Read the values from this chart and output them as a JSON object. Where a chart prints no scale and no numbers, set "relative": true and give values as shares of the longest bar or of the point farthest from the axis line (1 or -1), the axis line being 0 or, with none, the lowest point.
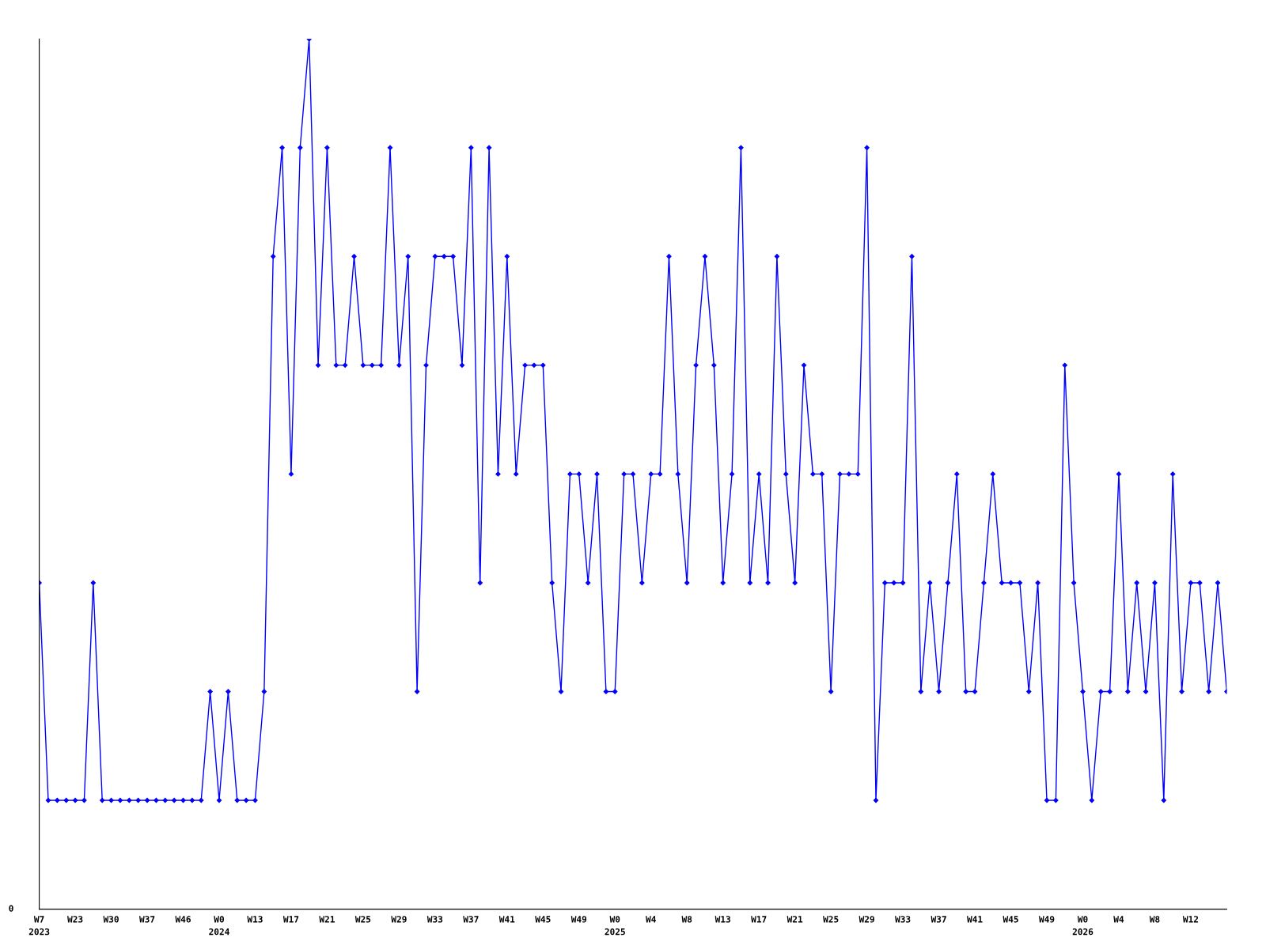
{
  "chart_data": {
    "type": "line",
    "relative": true,
    "annotations": [
      "0"
    ],
    "grid": false,
    "marker": "diamond",
    "line_style": "solid",
    "categories": [
      "W7\n2023",
      null,
      null,
      null,
      "W23",
      null,
      null,
      null,
      "W30",
      null,
      null,
      null,
      "W37",
      null,
      null,
      null,
      "W46",
      null,
      null,
      null,
      "W0\n2024",
      null,
      null,
      null,
      "W13",
      null,
      null,
      null,
      "W17",
      null,
      null,
      null,
      "W21",
      null,
      null,
      null,
      "W25",
      null,
      null,
      null,
      "W29",
      null,
      null,
      null,
      "W33",
      null,
      null,
      null,
      "W37",
      null,
      null,
      null,
      "W41",
      null,
      null,
      null,
      "W45",
      null,
      null,
      null,
      "W49",
      null,
      null,
      null,
      "W0\n2025",
      null,
      null,
      null,
      "W4",
      null,
      null,
      null,
      "W8",
      null,
      null,
      null,
      "W13",
      null,
      null,
      null,
      "W17",
      null,
      null,
      null,
      "W21",
      null,
      null,
      null,
      "W25",
      null,
      null,
      null,
      "W29",
      null,
      null,
      null,
      "W33",
      null,
      null,
      null,
      "W37",
      null,
      null,
      null,
      "W41",
      null,
      null,
      null,
      "W45",
      null,
      null,
      null,
      "W49",
      null,
      null,
      null,
      "W0\n2026",
      null,
      null,
      null,
      "W4",
      null,
      null,
      null,
      "W8",
      null,
      null,
      null,
      "W12",
      null,
      null,
      null,
      null
    ],
    "series": [
      {
        "color": "#0000ff",
        "values": [
          0.375,
          0.125,
          0.125,
          0.125,
          0.125,
          0.125,
          0.375,
          0.125,
          0.125,
          0.125,
          0.125,
          0.125,
          0.125,
          0.125,
          0.125,
          0.125,
          0.125,
          0.125,
          0.125,
          0.25,
          0.125,
          0.25,
          0.125,
          0.125,
          0.125,
          0.25,
          0.75,
          0.875,
          0.5,
          0.875,
          1,
          0.625,
          0.875,
          0.625,
          0.625,
          0.75,
          0.625,
          0.625,
          0.625,
          0.875,
          0.625,
          0.75,
          0.25,
          0.625,
          0.75,
          0.75,
          0.75,
          0.625,
          0.875,
          0.375,
          0.875,
          0.5,
          0.75,
          0.5,
          0.625,
          0.625,
          0.625,
          0.375,
          0.25,
          0.5,
          0.5,
          0.375,
          0.5,
          0.25,
          0.25,
          0.5,
          0.5,
          0.375,
          0.5,
          0.5,
          0.75,
          0.5,
          0.375,
          0.625,
          0.75,
          0.625,
          0.375,
          0.5,
          0.875,
          0.375,
          0.5,
          0.375,
          0.75,
          0.5,
          0.375,
          0.625,
          0.5,
          0.5,
          0.25,
          0.5,
          0.5,
          0.5,
          0.875,
          0.125,
          0.375,
          0.375,
          0.375,
          0.75,
          0.25,
          0.375,
          0.25,
          0.375,
          0.5,
          0.25,
          0.25,
          0.375,
          0.5,
          0.375,
          0.375,
          0.375,
          0.25,
          0.375,
          0.125,
          0.125,
          0.625,
          0.375,
          0.25,
          0.125,
          0.25,
          0.25,
          0.5,
          0.25,
          0.375,
          0.25,
          0.375,
          0.125,
          0.5,
          0.25,
          0.375,
          0.375,
          0.25,
          0.375,
          0.25
        ]
      }
    ]
  }
}
